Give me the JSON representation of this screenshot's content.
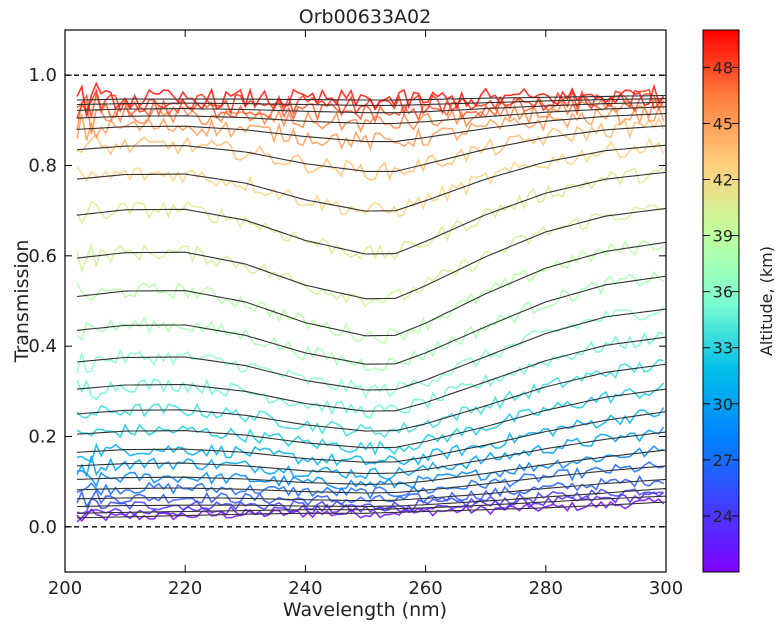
{
  "chart_data": {
    "type": "line",
    "title": "Orb00633A02",
    "xlabel": "Wavelength (nm)",
    "ylabel": "Transmission",
    "xlim": [
      200,
      300
    ],
    "ylim": [
      -0.1,
      1.1
    ],
    "xticks": [
      200,
      220,
      240,
      260,
      280,
      300
    ],
    "xtick_labels": [
      "200",
      "220",
      "240",
      "260",
      "280",
      "300"
    ],
    "yticks": [
      0.0,
      0.2,
      0.4,
      0.6,
      0.8,
      1.0
    ],
    "ytick_labels": [
      "0.0",
      "0.2",
      "0.4",
      "0.6",
      "0.8",
      "1.0"
    ],
    "reference_lines": [
      0.0,
      1.0
    ],
    "grid": false,
    "colorbar": {
      "label": "Altitude, (km)",
      "colormap": "rainbow",
      "range": [
        21,
        50
      ],
      "ticks": [
        24,
        27,
        30,
        33,
        36,
        39,
        42,
        45,
        48
      ],
      "tick_labels": [
        "24",
        "27",
        "30",
        "33",
        "36",
        "39",
        "42",
        "45",
        "48"
      ]
    },
    "fit_line_color": "#333333",
    "x": [
      202,
      210,
      220,
      230,
      240,
      250,
      255,
      260,
      270,
      280,
      290,
      300
    ],
    "series": [
      {
        "altitude": 21.5,
        "values": [
          0.02,
          0.022,
          0.025,
          0.028,
          0.03,
          0.03,
          0.032,
          0.034,
          0.038,
          0.042,
          0.048,
          0.055
        ]
      },
      {
        "altitude": 23.0,
        "values": [
          0.03,
          0.032,
          0.034,
          0.036,
          0.038,
          0.038,
          0.04,
          0.042,
          0.048,
          0.055,
          0.062,
          0.068
        ]
      },
      {
        "altitude": 24.5,
        "values": [
          0.045,
          0.047,
          0.048,
          0.048,
          0.046,
          0.045,
          0.046,
          0.049,
          0.057,
          0.066,
          0.075,
          0.085
        ]
      },
      {
        "altitude": 26.0,
        "values": [
          0.062,
          0.064,
          0.065,
          0.063,
          0.06,
          0.058,
          0.059,
          0.063,
          0.073,
          0.085,
          0.096,
          0.105
        ]
      },
      {
        "altitude": 27.0,
        "values": [
          0.082,
          0.085,
          0.086,
          0.083,
          0.078,
          0.075,
          0.076,
          0.081,
          0.095,
          0.11,
          0.124,
          0.135
        ]
      },
      {
        "altitude": 28.5,
        "values": [
          0.105,
          0.109,
          0.11,
          0.106,
          0.098,
          0.094,
          0.095,
          0.101,
          0.118,
          0.138,
          0.155,
          0.17
        ]
      },
      {
        "altitude": 30.0,
        "values": [
          0.135,
          0.14,
          0.141,
          0.135,
          0.124,
          0.118,
          0.119,
          0.127,
          0.149,
          0.173,
          0.194,
          0.21
        ]
      },
      {
        "altitude": 31.0,
        "values": [
          0.165,
          0.171,
          0.172,
          0.165,
          0.151,
          0.143,
          0.144,
          0.154,
          0.181,
          0.211,
          0.236,
          0.255
        ]
      },
      {
        "altitude": 32.5,
        "values": [
          0.205,
          0.212,
          0.213,
          0.203,
          0.186,
          0.175,
          0.176,
          0.189,
          0.222,
          0.258,
          0.287,
          0.305
        ]
      },
      {
        "altitude": 33.5,
        "values": [
          0.25,
          0.258,
          0.259,
          0.247,
          0.226,
          0.212,
          0.213,
          0.228,
          0.268,
          0.31,
          0.342,
          0.36
        ]
      },
      {
        "altitude": 35.0,
        "values": [
          0.305,
          0.314,
          0.315,
          0.3,
          0.273,
          0.256,
          0.257,
          0.275,
          0.321,
          0.368,
          0.402,
          0.42
        ]
      },
      {
        "altitude": 36.0,
        "values": [
          0.365,
          0.375,
          0.376,
          0.357,
          0.324,
          0.303,
          0.304,
          0.325,
          0.377,
          0.428,
          0.465,
          0.482
        ]
      },
      {
        "altitude": 37.5,
        "values": [
          0.435,
          0.446,
          0.447,
          0.424,
          0.385,
          0.36,
          0.361,
          0.385,
          0.443,
          0.498,
          0.536,
          0.555
        ]
      },
      {
        "altitude": 38.5,
        "values": [
          0.51,
          0.522,
          0.523,
          0.498,
          0.452,
          0.423,
          0.424,
          0.451,
          0.516,
          0.573,
          0.61,
          0.63
        ]
      },
      {
        "altitude": 40.0,
        "values": [
          0.595,
          0.607,
          0.608,
          0.582,
          0.535,
          0.505,
          0.506,
          0.534,
          0.598,
          0.653,
          0.688,
          0.705
        ]
      },
      {
        "altitude": 41.0,
        "values": [
          0.69,
          0.702,
          0.703,
          0.679,
          0.634,
          0.604,
          0.605,
          0.632,
          0.691,
          0.739,
          0.77,
          0.785
        ]
      },
      {
        "altitude": 42.5,
        "values": [
          0.77,
          0.78,
          0.781,
          0.761,
          0.724,
          0.699,
          0.7,
          0.722,
          0.77,
          0.808,
          0.833,
          0.845
        ]
      },
      {
        "altitude": 43.5,
        "values": [
          0.835,
          0.843,
          0.844,
          0.83,
          0.804,
          0.787,
          0.787,
          0.803,
          0.836,
          0.862,
          0.879,
          0.888
        ]
      },
      {
        "altitude": 45.0,
        "values": [
          0.88,
          0.886,
          0.887,
          0.879,
          0.864,
          0.853,
          0.853,
          0.862,
          0.882,
          0.898,
          0.909,
          0.915
        ]
      },
      {
        "altitude": 46.0,
        "values": [
          0.905,
          0.909,
          0.91,
          0.906,
          0.898,
          0.893,
          0.893,
          0.897,
          0.908,
          0.918,
          0.925,
          0.93
        ]
      },
      {
        "altitude": 47.5,
        "values": [
          0.922,
          0.925,
          0.926,
          0.924,
          0.92,
          0.917,
          0.917,
          0.919,
          0.926,
          0.932,
          0.937,
          0.94
        ]
      },
      {
        "altitude": 48.5,
        "values": [
          0.935,
          0.937,
          0.938,
          0.937,
          0.935,
          0.933,
          0.933,
          0.935,
          0.939,
          0.943,
          0.946,
          0.948
        ]
      },
      {
        "altitude": 49.5,
        "values": [
          0.945,
          0.947,
          0.947,
          0.947,
          0.946,
          0.945,
          0.945,
          0.946,
          0.949,
          0.951,
          0.953,
          0.955
        ]
      }
    ]
  }
}
